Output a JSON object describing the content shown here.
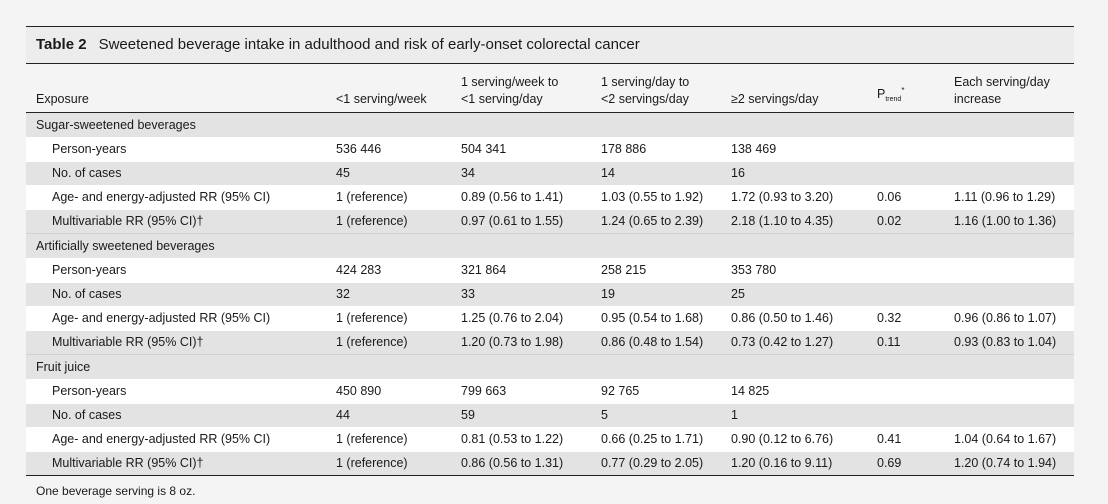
{
  "table": {
    "number": "Table 2",
    "title": "Sweetened beverage intake in adulthood and risk of early-onset colorectal cancer",
    "columns": {
      "exposure": "Exposure",
      "c1": "<1 serving/week",
      "c2a": "1 serving/week to",
      "c2b": "<1 serving/day",
      "c3a": "1 serving/day to",
      "c3b": "<2 servings/day",
      "c4": "≥2 servings/day",
      "ptrend_p": "P",
      "ptrend_sub": "trend",
      "ptrend_sup": "*",
      "c6a": "Each serving/day",
      "c6b": "increase"
    },
    "groups": [
      {
        "name": "Sugar-sweetened beverages",
        "rows": [
          {
            "label": "Person-years",
            "values": [
              "536 446",
              "504 341",
              "178 886",
              "138 469",
              "",
              ""
            ]
          },
          {
            "label": "No. of cases",
            "values": [
              "45",
              "34",
              "14",
              "16",
              "",
              ""
            ]
          },
          {
            "label": "Age- and energy-adjusted RR (95% CI)",
            "values": [
              "1 (reference)",
              "0.89 (0.56 to 1.41)",
              "1.03 (0.55 to 1.92)",
              "1.72 (0.93 to 3.20)",
              "0.06",
              "1.11 (0.96 to 1.29)"
            ]
          },
          {
            "label": "Multivariable RR (95% CI)†",
            "values": [
              "1 (reference)",
              "0.97 (0.61 to 1.55)",
              "1.24 (0.65 to 2.39)",
              "2.18 (1.10 to 4.35)",
              "0.02",
              "1.16 (1.00 to 1.36)"
            ]
          }
        ]
      },
      {
        "name": "Artificially sweetened beverages",
        "rows": [
          {
            "label": "Person-years",
            "values": [
              "424 283",
              "321 864",
              "258 215",
              "353 780",
              "",
              ""
            ]
          },
          {
            "label": "No. of cases",
            "values": [
              "32",
              "33",
              "19",
              "25",
              "",
              ""
            ]
          },
          {
            "label": "Age- and energy-adjusted RR (95% CI)",
            "values": [
              "1 (reference)",
              "1.25 (0.76 to 2.04)",
              "0.95 (0.54 to 1.68)",
              "0.86 (0.50 to 1.46)",
              "0.32",
              "0.96 (0.86 to 1.07)"
            ]
          },
          {
            "label": "Multivariable RR (95% CI)†",
            "values": [
              "1 (reference)",
              "1.20 (0.73 to 1.98)",
              "0.86 (0.48 to 1.54)",
              "0.73 (0.42 to 1.27)",
              "0.11",
              "0.93 (0.83 to 1.04)"
            ]
          }
        ]
      },
      {
        "name": "Fruit juice",
        "rows": [
          {
            "label": "Person-years",
            "values": [
              "450 890",
              "799 663",
              "92 765",
              "14 825",
              "",
              ""
            ]
          },
          {
            "label": "No. of cases",
            "values": [
              "44",
              "59",
              "5",
              "1",
              "",
              ""
            ]
          },
          {
            "label": "Age- and energy-adjusted RR (95% CI)",
            "values": [
              "1 (reference)",
              "0.81 (0.53 to 1.22)",
              "0.66 (0.25 to 1.71)",
              "0.90 (0.12 to 6.76)",
              "0.41",
              "1.04 (0.64 to 1.67)"
            ]
          },
          {
            "label": "Multivariable RR (95% CI)†",
            "values": [
              "1 (reference)",
              "0.86 (0.56 to 1.31)",
              "0.77 (0.29 to 2.05)",
              "1.20 (0.16 to 9.11)",
              "0.69",
              "1.20 (0.74 to 1.94)"
            ]
          }
        ]
      }
    ],
    "footnote": "One beverage serving is 8 oz."
  }
}
